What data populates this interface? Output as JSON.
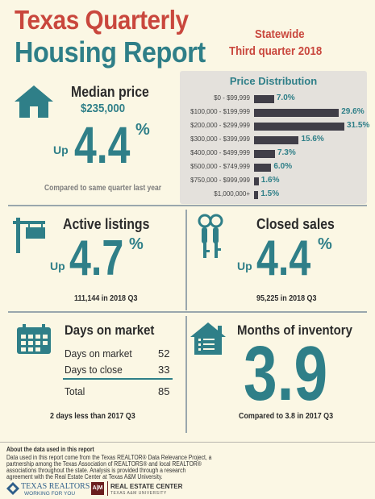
{
  "header": {
    "title_line1": "Texas Quarterly",
    "title_line2": "Housing Report",
    "subtitle_line1": "Statewide",
    "subtitle_line2": "Third quarter 2018"
  },
  "median_price": {
    "label": "Median price",
    "value": "$235,000",
    "direction": "Up",
    "change": "4.4",
    "percent_sign": "%",
    "note": "Compared to same quarter last year"
  },
  "price_distribution": {
    "title": "Price Distribution",
    "rows": [
      {
        "range": "$0 - $99,999",
        "value": "7.0%",
        "pct": 7.0
      },
      {
        "range": "$100,000 - $199,999",
        "value": "29.6%",
        "pct": 29.6
      },
      {
        "range": "$200,000 - $299,999",
        "value": "31.5%",
        "pct": 31.5
      },
      {
        "range": "$300,000 - $399,999",
        "value": "15.6%",
        "pct": 15.6
      },
      {
        "range": "$400,000 - $499,999",
        "value": "7.3%",
        "pct": 7.3
      },
      {
        "range": "$500,000 - $749,999",
        "value": "6.0%",
        "pct": 6.0
      },
      {
        "range": "$750,000 - $999,999",
        "value": "1.6%",
        "pct": 1.6
      },
      {
        "range": "$1,000,000+",
        "value": "1.5%",
        "pct": 1.5
      }
    ]
  },
  "active_listings": {
    "label": "Active listings",
    "direction": "Up",
    "change": "4.7",
    "percent_sign": "%",
    "note": "111,144 in 2018 Q3"
  },
  "closed_sales": {
    "label": "Closed sales",
    "direction": "Up",
    "change": "4.4",
    "percent_sign": "%",
    "note": "95,225 in 2018 Q3"
  },
  "days_on_market": {
    "label": "Days on market",
    "rows": [
      {
        "name": "Days on market",
        "value": "52"
      },
      {
        "name": "Days to close",
        "value": "33"
      }
    ],
    "total_label": "Total",
    "total_value": "85",
    "note": "2 days less than 2017 Q3"
  },
  "months_inventory": {
    "label": "Months of inventory",
    "value": "3.9",
    "note": "Compared to 3.8 in 2017 Q3"
  },
  "footer": {
    "about_title": "About the data used in this report",
    "about_text_1": "Data used in this report come from the Texas REALTOR® Data Relevance Project, a",
    "about_text_2": "partnership among the Texas Association of REALTORS® and local REALTOR®",
    "about_text_3": "associations throughout the state. Analysis is provided through a research",
    "about_text_4": "agreement with the Real Estate Center at Texas A&M University.",
    "brand1": "TEXAS REALTORS",
    "brand1_tag": "WORKING FOR YOU",
    "brand2_mark": "A|M",
    "brand2": "REAL ESTATE CENTER",
    "brand2_sub": "TEXAS A&M UNIVERSITY"
  },
  "colors": {
    "teal": "#2f7f88",
    "red": "#c9473d",
    "bar": "#403e48",
    "panel": "#e4e1dc",
    "background": "#fbf7e4"
  }
}
